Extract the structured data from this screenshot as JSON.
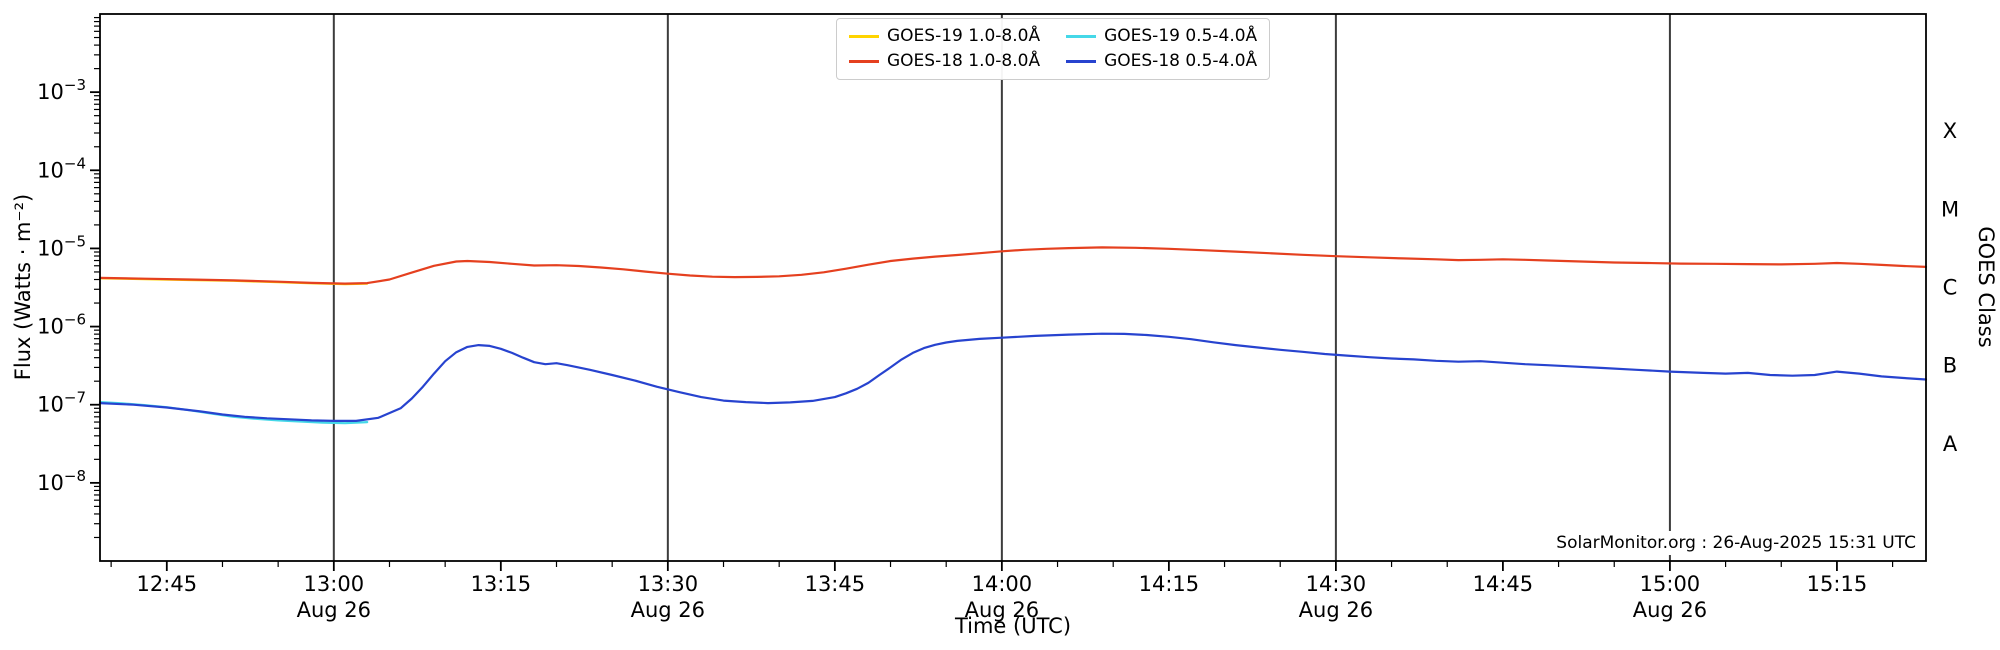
{
  "chart_data": {
    "type": "line",
    "title": "",
    "xlabel": "Time (UTC)",
    "ylabel": "Flux (Watts · m⁻²)",
    "ylabel_right": "GOES Class",
    "annotation": "SolarMonitor.org : 26-Aug-2025 15:31 UTC",
    "x_domain_minutes": [
      759,
      923
    ],
    "y_log_domain": [
      -9,
      -2
    ],
    "x_minor_step_minutes": 5,
    "y_tick_exponents": [
      -3,
      -4,
      -5,
      -6,
      -7,
      -8
    ],
    "day_lines_minutes": [
      780,
      810,
      840,
      870,
      900
    ],
    "x_ticks": [
      {
        "minute": 765,
        "label": "12:45",
        "sublabel": ""
      },
      {
        "minute": 780,
        "label": "13:00",
        "sublabel": "Aug 26"
      },
      {
        "minute": 795,
        "label": "13:15",
        "sublabel": ""
      },
      {
        "minute": 810,
        "label": "13:30",
        "sublabel": "Aug 26"
      },
      {
        "minute": 825,
        "label": "13:45",
        "sublabel": ""
      },
      {
        "minute": 840,
        "label": "14:00",
        "sublabel": "Aug 26"
      },
      {
        "minute": 855,
        "label": "14:15",
        "sublabel": ""
      },
      {
        "minute": 870,
        "label": "14:30",
        "sublabel": "Aug 26"
      },
      {
        "minute": 885,
        "label": "14:45",
        "sublabel": ""
      },
      {
        "minute": 900,
        "label": "15:00",
        "sublabel": "Aug 26"
      },
      {
        "minute": 915,
        "label": "15:15",
        "sublabel": ""
      }
    ],
    "goes_classes": [
      {
        "label": "X",
        "log_mid": -3.5
      },
      {
        "label": "M",
        "log_mid": -4.5
      },
      {
        "label": "C",
        "log_mid": -5.5
      },
      {
        "label": "B",
        "log_mid": -6.5
      },
      {
        "label": "A",
        "log_mid": -7.5
      }
    ],
    "colors": {
      "background": "#ffffff",
      "frame": "#000000",
      "day_line": "#3c3c3c"
    },
    "series": [
      {
        "name": "GOES-19 1.0-8.0Å",
        "color": "#ffd400",
        "points": [
          [
            759,
            4.15e-06
          ],
          [
            763,
            4.05e-06
          ],
          [
            767,
            3.95e-06
          ],
          [
            771,
            3.85e-06
          ],
          [
            775,
            3.7e-06
          ],
          [
            778,
            3.58e-06
          ],
          [
            781,
            3.5e-06
          ],
          [
            783,
            3.55e-06
          ]
        ]
      },
      {
        "name": "GOES-19 0.5-4.0Å",
        "color": "#45d8e8",
        "points": [
          [
            759,
            1.08e-07
          ],
          [
            761,
            1.04e-07
          ],
          [
            763,
            9.9e-08
          ],
          [
            765,
            9.3e-08
          ],
          [
            767,
            8.5e-08
          ],
          [
            769,
            7.7e-08
          ],
          [
            771,
            7e-08
          ],
          [
            773,
            6.6e-08
          ],
          [
            775,
            6.3e-08
          ],
          [
            777,
            6.1e-08
          ],
          [
            779,
            5.9e-08
          ],
          [
            781,
            5.8e-08
          ],
          [
            783,
            6e-08
          ]
        ]
      },
      {
        "name": "GOES-18 1.0-8.0Å",
        "color": "#e5401f",
        "points": [
          [
            759,
            4.2e-06
          ],
          [
            763,
            4.1e-06
          ],
          [
            767,
            4e-06
          ],
          [
            771,
            3.9e-06
          ],
          [
            775,
            3.75e-06
          ],
          [
            778,
            3.62e-06
          ],
          [
            781,
            3.55e-06
          ],
          [
            783,
            3.6e-06
          ],
          [
            785,
            4e-06
          ],
          [
            787,
            4.9e-06
          ],
          [
            789,
            6e-06
          ],
          [
            791,
            6.8e-06
          ],
          [
            792,
            6.9e-06
          ],
          [
            794,
            6.7e-06
          ],
          [
            796,
            6.35e-06
          ],
          [
            798,
            6.05e-06
          ],
          [
            800,
            6.1e-06
          ],
          [
            802,
            5.95e-06
          ],
          [
            804,
            5.7e-06
          ],
          [
            806,
            5.4e-06
          ],
          [
            808,
            5.05e-06
          ],
          [
            810,
            4.75e-06
          ],
          [
            812,
            4.5e-06
          ],
          [
            814,
            4.35e-06
          ],
          [
            816,
            4.3e-06
          ],
          [
            818,
            4.32e-06
          ],
          [
            820,
            4.4e-06
          ],
          [
            822,
            4.6e-06
          ],
          [
            824,
            4.95e-06
          ],
          [
            826,
            5.5e-06
          ],
          [
            828,
            6.2e-06
          ],
          [
            830,
            6.9e-06
          ],
          [
            832,
            7.4e-06
          ],
          [
            834,
            7.85e-06
          ],
          [
            836,
            8.25e-06
          ],
          [
            838,
            8.7e-06
          ],
          [
            840,
            9.2e-06
          ],
          [
            842,
            9.6e-06
          ],
          [
            844,
            9.9e-06
          ],
          [
            846,
            1.01e-05
          ],
          [
            849,
            1.03e-05
          ],
          [
            852,
            1.02e-05
          ],
          [
            855,
            9.9e-06
          ],
          [
            858,
            9.5e-06
          ],
          [
            861,
            9.1e-06
          ],
          [
            864,
            8.7e-06
          ],
          [
            867,
            8.3e-06
          ],
          [
            870,
            7.95e-06
          ],
          [
            873,
            7.7e-06
          ],
          [
            876,
            7.45e-06
          ],
          [
            879,
            7.25e-06
          ],
          [
            881,
            7.1e-06
          ],
          [
            883,
            7.15e-06
          ],
          [
            885,
            7.25e-06
          ],
          [
            887,
            7.15e-06
          ],
          [
            889,
            7e-06
          ],
          [
            892,
            6.8e-06
          ],
          [
            895,
            6.6e-06
          ],
          [
            898,
            6.5e-06
          ],
          [
            901,
            6.4e-06
          ],
          [
            904,
            6.35e-06
          ],
          [
            907,
            6.3e-06
          ],
          [
            910,
            6.25e-06
          ],
          [
            913,
            6.35e-06
          ],
          [
            915,
            6.5e-06
          ],
          [
            917,
            6.35e-06
          ],
          [
            919,
            6.15e-06
          ],
          [
            921,
            5.95e-06
          ],
          [
            923,
            5.8e-06
          ]
        ]
      },
      {
        "name": "GOES-18 0.5-4.0Å",
        "color": "#2743cf",
        "points": [
          [
            759,
            1.05e-07
          ],
          [
            762,
            1e-07
          ],
          [
            765,
            9.2e-08
          ],
          [
            768,
            8.2e-08
          ],
          [
            770,
            7.5e-08
          ],
          [
            772,
            7e-08
          ],
          [
            774,
            6.7e-08
          ],
          [
            776,
            6.5e-08
          ],
          [
            778,
            6.3e-08
          ],
          [
            780,
            6.2e-08
          ],
          [
            782,
            6.2e-08
          ],
          [
            784,
            6.8e-08
          ],
          [
            786,
            9e-08
          ],
          [
            787,
            1.2e-07
          ],
          [
            788,
            1.7e-07
          ],
          [
            789,
            2.5e-07
          ],
          [
            790,
            3.6e-07
          ],
          [
            791,
            4.7e-07
          ],
          [
            792,
            5.5e-07
          ],
          [
            793,
            5.8e-07
          ],
          [
            794,
            5.65e-07
          ],
          [
            795,
            5.2e-07
          ],
          [
            796,
            4.6e-07
          ],
          [
            797,
            4e-07
          ],
          [
            798,
            3.5e-07
          ],
          [
            799,
            3.3e-07
          ],
          [
            800,
            3.4e-07
          ],
          [
            801,
            3.2e-07
          ],
          [
            803,
            2.8e-07
          ],
          [
            805,
            2.4e-07
          ],
          [
            807,
            2.05e-07
          ],
          [
            809,
            1.7e-07
          ],
          [
            811,
            1.45e-07
          ],
          [
            813,
            1.25e-07
          ],
          [
            815,
            1.13e-07
          ],
          [
            817,
            1.08e-07
          ],
          [
            819,
            1.05e-07
          ],
          [
            821,
            1.07e-07
          ],
          [
            823,
            1.12e-07
          ],
          [
            825,
            1.25e-07
          ],
          [
            826,
            1.4e-07
          ],
          [
            827,
            1.6e-07
          ],
          [
            828,
            1.9e-07
          ],
          [
            829,
            2.4e-07
          ],
          [
            830,
            3e-07
          ],
          [
            831,
            3.8e-07
          ],
          [
            832,
            4.6e-07
          ],
          [
            833,
            5.3e-07
          ],
          [
            834,
            5.85e-07
          ],
          [
            835,
            6.25e-07
          ],
          [
            836,
            6.55e-07
          ],
          [
            838,
            6.95e-07
          ],
          [
            840,
            7.2e-07
          ],
          [
            843,
            7.6e-07
          ],
          [
            846,
            7.9e-07
          ],
          [
            849,
            8.1e-07
          ],
          [
            851,
            8.05e-07
          ],
          [
            853,
            7.8e-07
          ],
          [
            855,
            7.4e-07
          ],
          [
            857,
            6.9e-07
          ],
          [
            859,
            6.3e-07
          ],
          [
            861,
            5.8e-07
          ],
          [
            863,
            5.4e-07
          ],
          [
            865,
            5.05e-07
          ],
          [
            867,
            4.75e-07
          ],
          [
            869,
            4.45e-07
          ],
          [
            871,
            4.25e-07
          ],
          [
            873,
            4.05e-07
          ],
          [
            875,
            3.9e-07
          ],
          [
            877,
            3.8e-07
          ],
          [
            879,
            3.65e-07
          ],
          [
            881,
            3.55e-07
          ],
          [
            883,
            3.6e-07
          ],
          [
            885,
            3.45e-07
          ],
          [
            887,
            3.3e-07
          ],
          [
            889,
            3.2e-07
          ],
          [
            891,
            3.1e-07
          ],
          [
            894,
            2.95e-07
          ],
          [
            897,
            2.8e-07
          ],
          [
            900,
            2.65e-07
          ],
          [
            903,
            2.55e-07
          ],
          [
            905,
            2.5e-07
          ],
          [
            907,
            2.55e-07
          ],
          [
            909,
            2.4e-07
          ],
          [
            911,
            2.35e-07
          ],
          [
            913,
            2.4e-07
          ],
          [
            915,
            2.65e-07
          ],
          [
            917,
            2.5e-07
          ],
          [
            919,
            2.3e-07
          ],
          [
            921,
            2.2e-07
          ],
          [
            923,
            2.1e-07
          ]
        ]
      }
    ]
  }
}
